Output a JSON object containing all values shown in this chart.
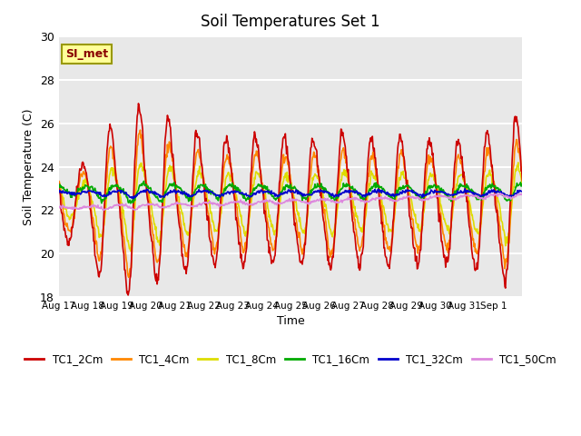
{
  "title": "Soil Temperatures Set 1",
  "xlabel": "Time",
  "ylabel": "Soil Temperature (C)",
  "ylim": [
    18,
    30
  ],
  "yticks": [
    18,
    20,
    22,
    24,
    26,
    28,
    30
  ],
  "x_tick_positions": [
    0,
    1,
    2,
    3,
    4,
    5,
    6,
    7,
    8,
    9,
    10,
    11,
    12,
    13,
    14,
    15,
    16
  ],
  "x_labels": [
    "Aug 17",
    "Aug 18",
    "Aug 19",
    "Aug 20",
    "Aug 21",
    "Aug 22",
    "Aug 23",
    "Aug 24",
    "Aug 25",
    "Aug 26",
    "Aug 27",
    "Aug 28",
    "Aug 29",
    "Aug 30",
    "Aug 31",
    "Sep 1",
    ""
  ],
  "series_colors": {
    "TC1_2Cm": "#cc0000",
    "TC1_4Cm": "#ff8800",
    "TC1_8Cm": "#dddd00",
    "TC1_16Cm": "#00aa00",
    "TC1_32Cm": "#0000cc",
    "TC1_50Cm": "#dd88dd"
  },
  "annotation_text": "SI_met",
  "annotation_facecolor": "#ffff99",
  "annotation_edgecolor": "#999900",
  "annotation_textcolor": "#880000",
  "bg_color": "#e8e8e8",
  "grid_color": "#ffffff",
  "figsize": [
    6.4,
    4.8
  ],
  "dpi": 100,
  "line_width": 1.2
}
